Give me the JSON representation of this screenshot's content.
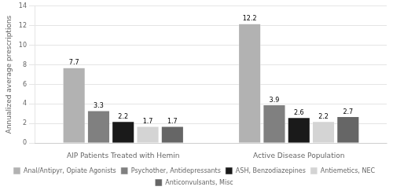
{
  "chart_data": {
    "type": "bar",
    "categories": [
      "AIP Patients Treated with Hemin",
      "Active Disease Population"
    ],
    "series": [
      {
        "name": "Anal/Antipyr, Opiate Agonists",
        "color": "#b2b2b2",
        "values": [
          7.7,
          12.2
        ]
      },
      {
        "name": "Psychother, Antidepressants",
        "color": "#808080",
        "values": [
          3.3,
          3.9
        ]
      },
      {
        "name": "ASH, Benzodiazepines",
        "color": "#1a1a1a",
        "values": [
          2.2,
          2.6
        ]
      },
      {
        "name": "Antiemetics, NEC",
        "color": "#d4d4d4",
        "values": [
          1.7,
          2.2
        ]
      },
      {
        "name": "Anticonvulsants, Misc",
        "color": "#666666",
        "values": [
          1.7,
          2.7
        ]
      }
    ],
    "ylabel": "Annualized average prescriptions",
    "ylim": [
      0,
      14
    ],
    "yticks": [
      0,
      2,
      4,
      6,
      8,
      10,
      12,
      14
    ],
    "grid": true,
    "data_labels": true,
    "legend": "bottom"
  }
}
